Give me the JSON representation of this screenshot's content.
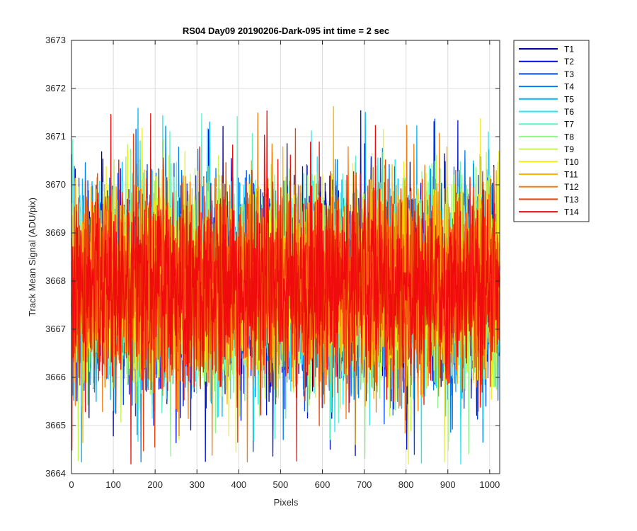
{
  "chart_data": {
    "type": "line",
    "title": "RS04 Day09 20190206-Dark-095 int time = 2 sec",
    "xlabel": "Pixels",
    "ylabel": "Track Mean Signal (ADU/pix)",
    "xlim": [
      0,
      1024
    ],
    "ylim": [
      3664,
      3673
    ],
    "xticks": [
      0,
      100,
      200,
      300,
      400,
      500,
      600,
      700,
      800,
      900,
      1000
    ],
    "yticks": [
      3664,
      3665,
      3666,
      3667,
      3668,
      3669,
      3670,
      3671,
      3672,
      3673
    ],
    "grid": true,
    "legend_position": "outside-top-right",
    "noise_model": {
      "points_per_series": 1024,
      "mean": 3667.9,
      "typical_min": 3665.6,
      "typical_max": 3670.3,
      "extreme_min": 3664.2,
      "extreme_max": 3672.1
    },
    "series": [
      {
        "name": "T1",
        "color": "#0000a8"
      },
      {
        "name": "T2",
        "color": "#0012d6"
      },
      {
        "name": "T3",
        "color": "#0048f5"
      },
      {
        "name": "T4",
        "color": "#007df2"
      },
      {
        "name": "T5",
        "color": "#00b4f7"
      },
      {
        "name": "T6",
        "color": "#21e8f5"
      },
      {
        "name": "T7",
        "color": "#5ff2c8"
      },
      {
        "name": "T8",
        "color": "#8ef78a"
      },
      {
        "name": "T9",
        "color": "#c3f74a"
      },
      {
        "name": "T10",
        "color": "#f2ee19"
      },
      {
        "name": "T11",
        "color": "#f7b500"
      },
      {
        "name": "T12",
        "color": "#f57d0c"
      },
      {
        "name": "T13",
        "color": "#f0400b"
      },
      {
        "name": "T14",
        "color": "#f00c0c"
      }
    ]
  }
}
